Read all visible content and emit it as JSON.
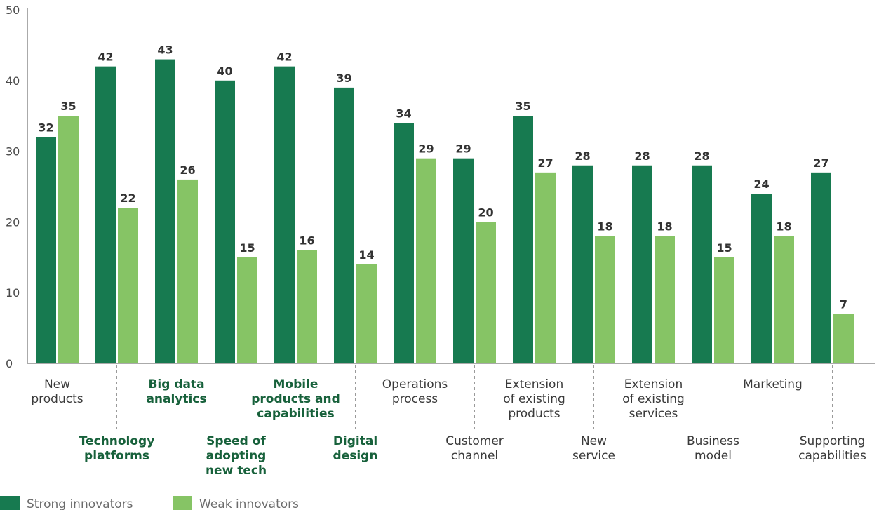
{
  "chart_data": {
    "type": "bar",
    "ylim": [
      0,
      50
    ],
    "yticks": [
      0,
      10,
      20,
      30,
      40,
      50
    ],
    "grid": false,
    "legend_position": "bottom-left",
    "colors": {
      "strong": "#177a50",
      "weak": "#86c465",
      "highlight_label": "#17613b",
      "axis": "#555555",
      "divider": "#9a9a9a"
    },
    "categories": [
      {
        "lines": [
          "New",
          "products"
        ],
        "row": "top",
        "highlight": false
      },
      {
        "lines": [
          "Technology",
          "platforms"
        ],
        "row": "bottom",
        "highlight": true
      },
      {
        "lines": [
          "Big data",
          "analytics"
        ],
        "row": "top",
        "highlight": true
      },
      {
        "lines": [
          "Speed of",
          "adopting",
          "new tech"
        ],
        "row": "bottom",
        "highlight": true
      },
      {
        "lines": [
          "Mobile",
          "products and",
          "capabilities"
        ],
        "row": "top",
        "highlight": true
      },
      {
        "lines": [
          "Digital",
          "design"
        ],
        "row": "bottom",
        "highlight": true
      },
      {
        "lines": [
          "Operations",
          "process"
        ],
        "row": "top",
        "highlight": false
      },
      {
        "lines": [
          "Customer",
          "channel"
        ],
        "row": "bottom",
        "highlight": false
      },
      {
        "lines": [
          "Extension",
          "of existing",
          "products"
        ],
        "row": "top",
        "highlight": false
      },
      {
        "lines": [
          "New",
          "service"
        ],
        "row": "bottom",
        "highlight": false
      },
      {
        "lines": [
          "Extension",
          "of existing",
          "services"
        ],
        "row": "top",
        "highlight": false
      },
      {
        "lines": [
          "Business",
          "model"
        ],
        "row": "bottom",
        "highlight": false
      },
      {
        "lines": [
          "Marketing"
        ],
        "row": "top",
        "highlight": false
      },
      {
        "lines": [
          "Supporting",
          "capabilities"
        ],
        "row": "bottom",
        "highlight": false
      }
    ],
    "series": [
      {
        "name": "Strong innovators",
        "color_key": "strong",
        "values": [
          32,
          42,
          43,
          40,
          42,
          39,
          34,
          29,
          35,
          28,
          28,
          28,
          24,
          27
        ]
      },
      {
        "name": "Weak innovators",
        "color_key": "weak",
        "values": [
          35,
          22,
          26,
          15,
          16,
          14,
          29,
          20,
          27,
          18,
          18,
          15,
          18,
          7
        ]
      }
    ]
  }
}
